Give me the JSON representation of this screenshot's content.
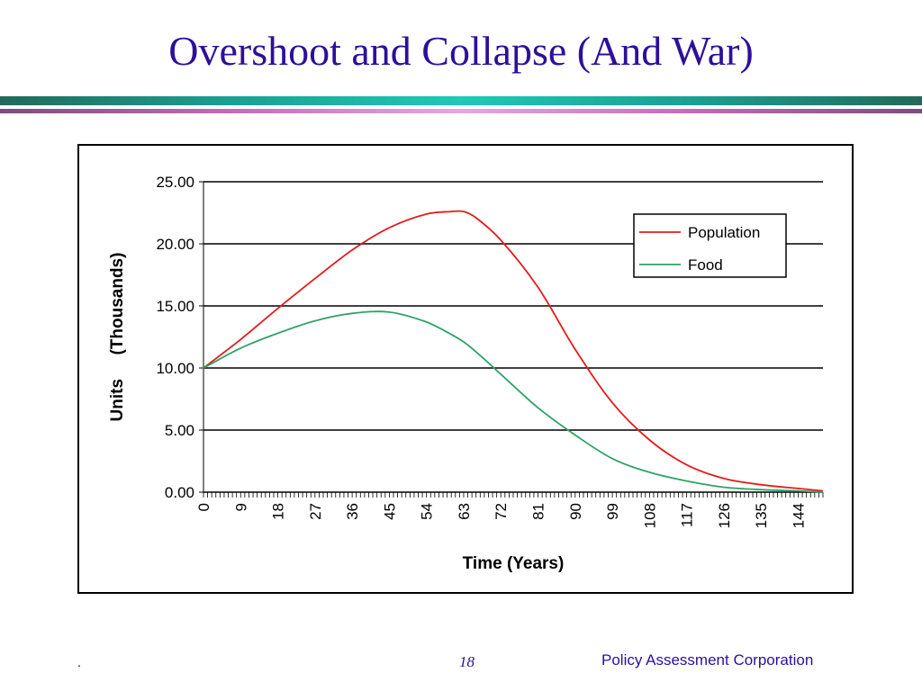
{
  "slide": {
    "title": "Overshoot and Collapse (And War)",
    "page_number": "18",
    "footer_left": ".",
    "footer_right": "Policy Assessment Corporation"
  },
  "colors": {
    "title": "#2e0f9a",
    "rule_teal": "#1c9f92",
    "rule_pink": "#c36bb8",
    "population": "#e21c1c",
    "food": "#2fa368"
  },
  "chart_data": {
    "type": "line",
    "xlabel": "Time (Years)",
    "ylabel": "Units     (Thousands)",
    "ylim": [
      0,
      25
    ],
    "xlim": [
      0,
      150
    ],
    "y_ticks": [
      "0.00",
      "5.00",
      "10.00",
      "15.00",
      "20.00",
      "25.00"
    ],
    "x_ticks": [
      "0",
      "9",
      "18",
      "27",
      "36",
      "45",
      "54",
      "63",
      "72",
      "81",
      "90",
      "99",
      "108",
      "117",
      "126",
      "135",
      "144"
    ],
    "grid": "horizontal",
    "legend_position": "top-right",
    "x": [
      0,
      9,
      18,
      27,
      36,
      45,
      54,
      60,
      63,
      66,
      72,
      81,
      90,
      99,
      108,
      117,
      126,
      135,
      144,
      150
    ],
    "series": [
      {
        "name": "Population",
        "values": [
          10.0,
          12.3,
          14.8,
          17.2,
          19.5,
          21.3,
          22.4,
          22.6,
          22.6,
          22.1,
          20.3,
          16.5,
          11.5,
          7.2,
          4.2,
          2.2,
          1.1,
          0.6,
          0.3,
          0.1
        ]
      },
      {
        "name": "Food",
        "values": [
          10.0,
          11.6,
          12.8,
          13.8,
          14.4,
          14.5,
          13.7,
          12.7,
          12.1,
          11.3,
          9.5,
          6.8,
          4.6,
          2.7,
          1.6,
          0.9,
          0.4,
          0.2,
          0.1,
          0.0
        ]
      }
    ]
  }
}
